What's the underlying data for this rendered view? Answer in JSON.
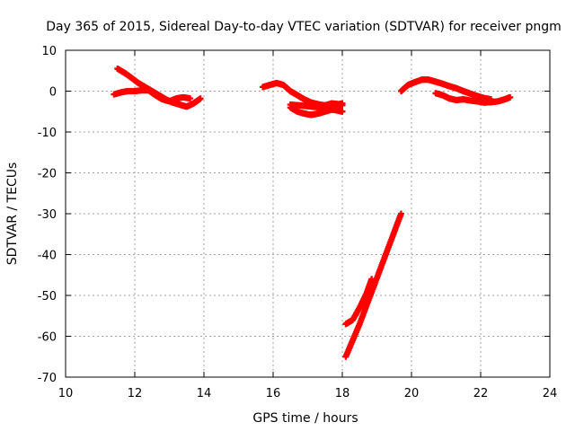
{
  "chart_data": {
    "type": "scatter",
    "title": "Day 365 of 2015, Sidereal Day-to-day VTEC variation (SDTVAR) for receiver pngm",
    "xlabel": "GPS time / hours",
    "ylabel": "SDTVAR / TECUs",
    "xlim": [
      10,
      24
    ],
    "ylim": [
      -70,
      10
    ],
    "xticks": [
      10,
      12,
      14,
      16,
      18,
      20,
      22,
      24
    ],
    "yticks": [
      10,
      0,
      -10,
      -20,
      -30,
      -40,
      -50,
      -60,
      -70
    ],
    "grid": true,
    "legend": "none",
    "marker": "plus",
    "color": "#ff0000",
    "series": [
      {
        "x": [
          11.4,
          11.6,
          11.8,
          12.0,
          12.2,
          12.4,
          12.6,
          12.8,
          13.0,
          13.2,
          13.4,
          13.6
        ],
        "y": [
          -0.8,
          -0.3,
          0.0,
          0.0,
          0.2,
          0.2,
          -1.0,
          -2.0,
          -2.5,
          -1.8,
          -1.5,
          -1.8
        ]
      },
      {
        "x": [
          11.5,
          11.7,
          11.9,
          12.1,
          12.3,
          12.5,
          12.7,
          12.9,
          13.1,
          13.3,
          13.5,
          13.7,
          13.9
        ],
        "y": [
          5.5,
          4.5,
          3.3,
          2.0,
          1.0,
          0.0,
          -1.0,
          -2.0,
          -2.8,
          -3.3,
          -3.8,
          -3.0,
          -1.8
        ]
      },
      {
        "x": [
          15.7,
          15.9,
          16.1,
          16.3,
          16.5,
          16.7,
          16.9,
          17.1,
          17.3,
          17.5,
          17.7,
          17.9,
          18.0
        ],
        "y": [
          1.0,
          1.5,
          2.0,
          1.5,
          0.0,
          -1.0,
          -2.0,
          -2.8,
          -3.2,
          -3.5,
          -3.0,
          -3.2,
          -3.5
        ]
      },
      {
        "x": [
          16.5,
          16.7,
          16.9,
          17.1,
          17.3,
          17.5,
          17.7,
          17.9,
          18.0
        ],
        "y": [
          -4.0,
          -5.0,
          -5.5,
          -5.8,
          -5.5,
          -5.0,
          -4.5,
          -4.8,
          -5.0
        ]
      },
      {
        "x": [
          16.5,
          16.8,
          17.1,
          17.4,
          17.7,
          18.0
        ],
        "y": [
          -3.3,
          -3.5,
          -3.8,
          -4.0,
          -3.5,
          -3.0
        ]
      },
      {
        "x": [
          18.1,
          18.3,
          18.5,
          18.7,
          18.9,
          19.1,
          19.3,
          19.5,
          19.7
        ],
        "y": [
          -65.0,
          -61.0,
          -57.0,
          -52.5,
          -48.0,
          -43.5,
          -39.0,
          -34.5,
          -30.0
        ]
      },
      {
        "x": [
          18.1,
          18.3,
          18.5,
          18.7,
          18.85
        ],
        "y": [
          -57.0,
          -56.0,
          -53.0,
          -49.5,
          -46.0
        ]
      },
      {
        "x": [
          19.7,
          19.9,
          20.1,
          20.3,
          20.5,
          20.7,
          20.9,
          21.1,
          21.3,
          21.5,
          21.7,
          21.9,
          22.1,
          22.3
        ],
        "y": [
          0.0,
          1.5,
          2.2,
          2.8,
          2.8,
          2.3,
          1.8,
          1.2,
          0.7,
          0.0,
          -0.6,
          -1.2,
          -1.7,
          -2.0
        ]
      },
      {
        "x": [
          20.7,
          20.9,
          21.1,
          21.3,
          21.5,
          21.7,
          21.9,
          22.1,
          22.3,
          22.5,
          22.7,
          22.85
        ],
        "y": [
          -0.5,
          -1.0,
          -1.8,
          -2.2,
          -2.0,
          -2.3,
          -2.5,
          -2.8,
          -2.7,
          -2.5,
          -2.0,
          -1.5
        ]
      }
    ]
  }
}
